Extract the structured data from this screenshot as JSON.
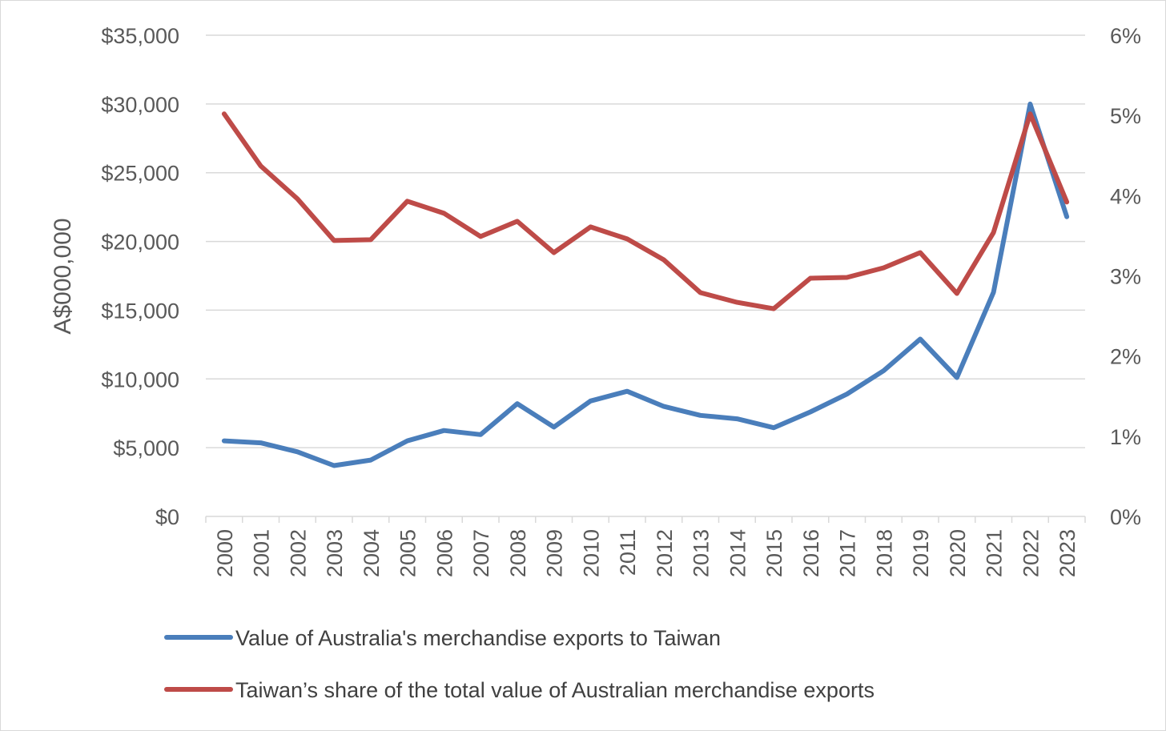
{
  "chart_data": {
    "type": "line",
    "title": "",
    "xlabel": "",
    "ylabel": "A$000,000",
    "categories": [
      "2000",
      "2001",
      "2002",
      "2003",
      "2004",
      "2005",
      "2006",
      "2007",
      "2008",
      "2009",
      "2010",
      "2011",
      "2012",
      "2013",
      "2014",
      "2015",
      "2016",
      "2017",
      "2018",
      "2019",
      "2020",
      "2021",
      "2022",
      "2023"
    ],
    "y_left": {
      "range": [
        0,
        35000
      ],
      "ticks": [
        0,
        5000,
        10000,
        15000,
        20000,
        25000,
        30000,
        35000
      ],
      "tick_labels": [
        "$0",
        "$5,000",
        "$10,000",
        "$15,000",
        "$20,000",
        "$25,000",
        "$30,000",
        "$35,000"
      ]
    },
    "y_right": {
      "range": [
        0,
        6
      ],
      "ticks": [
        0,
        1,
        2,
        3,
        4,
        5,
        6
      ],
      "tick_labels": [
        "0%",
        "1%",
        "2%",
        "3%",
        "4%",
        "5%",
        "6%"
      ]
    },
    "grid": true,
    "legend_position": "bottom",
    "series": [
      {
        "name": "Value of Australia's merchandise exports to Taiwan",
        "color": "#4a7ebb",
        "axis": "left",
        "values": [
          5500,
          5350,
          4700,
          3700,
          4100,
          5500,
          6250,
          5950,
          8200,
          6500,
          8400,
          9100,
          8000,
          7350,
          7100,
          6450,
          7600,
          8900,
          10600,
          12900,
          10100,
          16300,
          30000,
          21800
        ]
      },
      {
        "name": "Taiwan’s share of the total value of Australian merchandise exports",
        "color": "#be4b48",
        "axis": "right",
        "values": [
          5.02,
          4.37,
          3.96,
          3.44,
          3.45,
          3.93,
          3.78,
          3.49,
          3.68,
          3.29,
          3.61,
          3.46,
          3.2,
          2.79,
          2.67,
          2.59,
          2.97,
          2.98,
          3.1,
          3.29,
          2.78,
          3.54,
          5.02,
          3.92
        ]
      }
    ]
  }
}
